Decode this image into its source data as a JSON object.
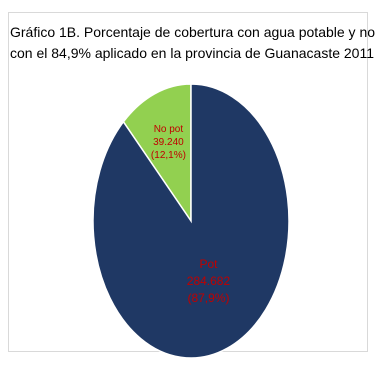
{
  "title": {
    "line1": "Gráfico 1B. Porcentaje  de cobertura con agua potable y no",
    "line2": "con el 84,9% aplicado en la provincia de Guanacaste 2011"
  },
  "chart_data": {
    "type": "pie",
    "title": "Gráfico 1B. Porcentaje  de cobertura con agua potable y no con el 84,9% aplicado en la provincia de Guanacaste 2011",
    "slices": [
      {
        "label": "Pot",
        "value": 284682,
        "value_text": "284.682",
        "percent": 87.9,
        "percent_text": "(87,9%)",
        "color": "#1f3864"
      },
      {
        "label": "No pot",
        "value": 39240,
        "value_text": "39.240",
        "percent": 12.1,
        "percent_text": "(12,1%)",
        "color": "#92d050"
      }
    ],
    "label_color": "#c00000",
    "legend": "none"
  }
}
